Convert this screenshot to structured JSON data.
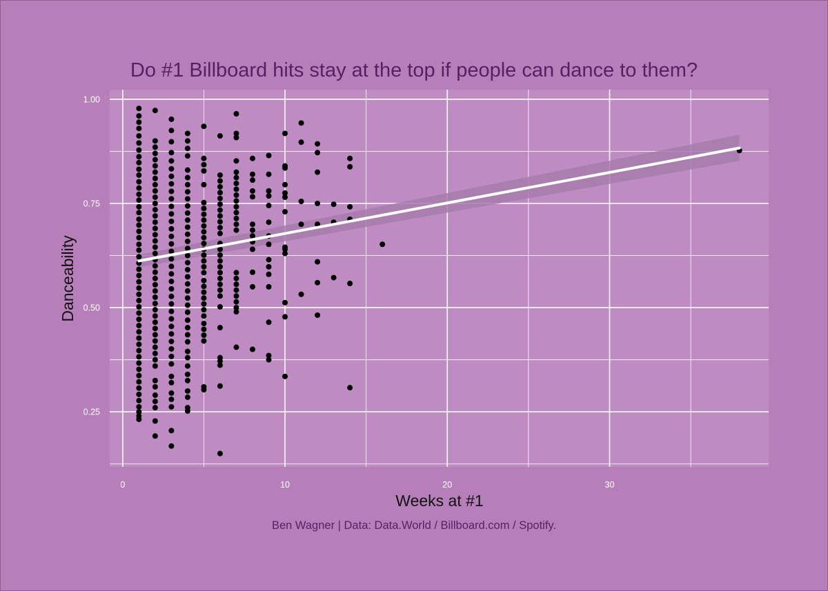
{
  "chart_data": {
    "type": "scatter",
    "title": "Do #1 Billboard hits stay at the top if people can dance to them?",
    "caption": "Ben Wagner | Data: Data.World / Billboard.com / Spotify.",
    "xlabel": "Weeks at #1",
    "ylabel": "Danceability",
    "xlim": [
      -0.8,
      39.8
    ],
    "ylim": [
      0.118,
      1.023
    ],
    "x_ticks": [
      0,
      10,
      20,
      30
    ],
    "x_tick_labels": [
      "0",
      "10",
      "20",
      "30"
    ],
    "x_minor_ticks": [
      5,
      15,
      25,
      35
    ],
    "y_ticks": [
      0.25,
      0.5,
      0.75,
      1.0
    ],
    "y_tick_labels": [
      "0.25",
      "0.50",
      "0.75",
      "1.00"
    ],
    "y_minor_ticks": [
      0.125,
      0.375,
      0.625,
      0.875
    ],
    "grid": true,
    "legend": "none",
    "colors": {
      "background": "#b77fba",
      "panel": "#be8cc3",
      "grid": "#ffffff",
      "points": "#000000",
      "trend_line": "#ffffff",
      "confidence_band": "#a77cad",
      "title": "#5a1f63"
    },
    "trend_line": {
      "x": [
        1,
        38
      ],
      "y": [
        0.612,
        0.883
      ],
      "ci_lower": [
        0.597,
        0.852
      ],
      "ci_upper": [
        0.627,
        0.915
      ]
    },
    "points": [
      [
        1,
        0.978
      ],
      [
        1,
        0.96
      ],
      [
        1,
        0.945
      ],
      [
        1,
        0.93
      ],
      [
        1,
        0.912
      ],
      [
        1,
        0.895
      ],
      [
        1,
        0.878
      ],
      [
        1,
        0.862
      ],
      [
        1,
        0.848
      ],
      [
        1,
        0.832
      ],
      [
        1,
        0.818
      ],
      [
        1,
        0.802
      ],
      [
        1,
        0.787
      ],
      [
        1,
        0.772
      ],
      [
        1,
        0.758
      ],
      [
        1,
        0.742
      ],
      [
        1,
        0.728
      ],
      [
        1,
        0.712
      ],
      [
        1,
        0.698
      ],
      [
        1,
        0.683
      ],
      [
        1,
        0.668
      ],
      [
        1,
        0.652
      ],
      [
        1,
        0.638
      ],
      [
        1,
        0.622
      ],
      [
        1,
        0.607
      ],
      [
        1,
        0.592
      ],
      [
        1,
        0.577
      ],
      [
        1,
        0.562
      ],
      [
        1,
        0.547
      ],
      [
        1,
        0.532
      ],
      [
        1,
        0.517
      ],
      [
        1,
        0.502
      ],
      [
        1,
        0.487
      ],
      [
        1,
        0.472
      ],
      [
        1,
        0.457
      ],
      [
        1,
        0.442
      ],
      [
        1,
        0.427
      ],
      [
        1,
        0.412
      ],
      [
        1,
        0.397
      ],
      [
        1,
        0.382
      ],
      [
        1,
        0.367
      ],
      [
        1,
        0.352
      ],
      [
        1,
        0.337
      ],
      [
        1,
        0.322
      ],
      [
        1,
        0.307
      ],
      [
        1,
        0.292
      ],
      [
        1,
        0.277
      ],
      [
        1,
        0.262
      ],
      [
        1,
        0.25
      ],
      [
        1,
        0.24
      ],
      [
        1,
        0.232
      ],
      [
        2,
        0.973
      ],
      [
        2,
        0.9
      ],
      [
        2,
        0.885
      ],
      [
        2,
        0.87
      ],
      [
        2,
        0.855
      ],
      [
        2,
        0.84
      ],
      [
        2,
        0.825
      ],
      [
        2,
        0.81
      ],
      [
        2,
        0.795
      ],
      [
        2,
        0.78
      ],
      [
        2,
        0.765
      ],
      [
        2,
        0.75
      ],
      [
        2,
        0.735
      ],
      [
        2,
        0.72
      ],
      [
        2,
        0.705
      ],
      [
        2,
        0.69
      ],
      [
        2,
        0.675
      ],
      [
        2,
        0.66
      ],
      [
        2,
        0.645
      ],
      [
        2,
        0.63
      ],
      [
        2,
        0.615
      ],
      [
        2,
        0.6
      ],
      [
        2,
        0.585
      ],
      [
        2,
        0.57
      ],
      [
        2,
        0.555
      ],
      [
        2,
        0.54
      ],
      [
        2,
        0.525
      ],
      [
        2,
        0.51
      ],
      [
        2,
        0.495
      ],
      [
        2,
        0.48
      ],
      [
        2,
        0.465
      ],
      [
        2,
        0.45
      ],
      [
        2,
        0.435
      ],
      [
        2,
        0.42
      ],
      [
        2,
        0.405
      ],
      [
        2,
        0.39
      ],
      [
        2,
        0.375
      ],
      [
        2,
        0.36
      ],
      [
        2,
        0.325
      ],
      [
        2,
        0.31
      ],
      [
        2,
        0.29
      ],
      [
        2,
        0.275
      ],
      [
        2,
        0.26
      ],
      [
        2,
        0.228
      ],
      [
        2,
        0.192
      ],
      [
        3,
        0.952
      ],
      [
        3,
        0.925
      ],
      [
        3,
        0.898
      ],
      [
        3,
        0.872
      ],
      [
        3,
        0.852
      ],
      [
        3,
        0.833
      ],
      [
        3,
        0.815
      ],
      [
        3,
        0.797
      ],
      [
        3,
        0.779
      ],
      [
        3,
        0.761
      ],
      [
        3,
        0.743
      ],
      [
        3,
        0.725
      ],
      [
        3,
        0.707
      ],
      [
        3,
        0.689
      ],
      [
        3,
        0.671
      ],
      [
        3,
        0.653
      ],
      [
        3,
        0.635
      ],
      [
        3,
        0.617
      ],
      [
        3,
        0.599
      ],
      [
        3,
        0.581
      ],
      [
        3,
        0.563
      ],
      [
        3,
        0.545
      ],
      [
        3,
        0.527
      ],
      [
        3,
        0.509
      ],
      [
        3,
        0.491
      ],
      [
        3,
        0.473
      ],
      [
        3,
        0.455
      ],
      [
        3,
        0.437
      ],
      [
        3,
        0.419
      ],
      [
        3,
        0.401
      ],
      [
        3,
        0.383
      ],
      [
        3,
        0.365
      ],
      [
        3,
        0.335
      ],
      [
        3,
        0.32
      ],
      [
        3,
        0.295
      ],
      [
        3,
        0.28
      ],
      [
        3,
        0.262
      ],
      [
        3,
        0.205
      ],
      [
        3,
        0.168
      ],
      [
        4,
        0.918
      ],
      [
        4,
        0.9
      ],
      [
        4,
        0.882
      ],
      [
        4,
        0.864
      ],
      [
        4,
        0.83
      ],
      [
        4,
        0.812
      ],
      [
        4,
        0.795
      ],
      [
        4,
        0.778
      ],
      [
        4,
        0.761
      ],
      [
        4,
        0.744
      ],
      [
        4,
        0.727
      ],
      [
        4,
        0.71
      ],
      [
        4,
        0.693
      ],
      [
        4,
        0.676
      ],
      [
        4,
        0.659
      ],
      [
        4,
        0.642
      ],
      [
        4,
        0.625
      ],
      [
        4,
        0.608
      ],
      [
        4,
        0.591
      ],
      [
        4,
        0.574
      ],
      [
        4,
        0.557
      ],
      [
        4,
        0.54
      ],
      [
        4,
        0.523
      ],
      [
        4,
        0.506
      ],
      [
        4,
        0.489
      ],
      [
        4,
        0.47
      ],
      [
        4,
        0.452
      ],
      [
        4,
        0.435
      ],
      [
        4,
        0.418
      ],
      [
        4,
        0.395
      ],
      [
        4,
        0.38
      ],
      [
        4,
        0.36
      ],
      [
        4,
        0.34
      ],
      [
        4,
        0.325
      ],
      [
        4,
        0.3
      ],
      [
        4,
        0.285
      ],
      [
        4,
        0.26
      ],
      [
        4,
        0.252
      ],
      [
        5,
        0.935
      ],
      [
        5,
        0.858
      ],
      [
        5,
        0.843
      ],
      [
        5,
        0.828
      ],
      [
        5,
        0.795
      ],
      [
        5,
        0.752
      ],
      [
        5,
        0.738
      ],
      [
        5,
        0.724
      ],
      [
        5,
        0.71
      ],
      [
        5,
        0.696
      ],
      [
        5,
        0.682
      ],
      [
        5,
        0.668
      ],
      [
        5,
        0.654
      ],
      [
        5,
        0.64
      ],
      [
        5,
        0.626
      ],
      [
        5,
        0.612
      ],
      [
        5,
        0.598
      ],
      [
        5,
        0.584
      ],
      [
        5,
        0.565
      ],
      [
        5,
        0.551
      ],
      [
        5,
        0.537
      ],
      [
        5,
        0.523
      ],
      [
        5,
        0.509
      ],
      [
        5,
        0.495
      ],
      [
        5,
        0.48
      ],
      [
        5,
        0.462
      ],
      [
        5,
        0.448
      ],
      [
        5,
        0.434
      ],
      [
        5,
        0.42
      ],
      [
        5,
        0.31
      ],
      [
        5,
        0.303
      ],
      [
        6,
        0.912
      ],
      [
        6,
        0.818
      ],
      [
        6,
        0.804
      ],
      [
        6,
        0.79
      ],
      [
        6,
        0.776
      ],
      [
        6,
        0.762
      ],
      [
        6,
        0.748
      ],
      [
        6,
        0.734
      ],
      [
        6,
        0.72
      ],
      [
        6,
        0.706
      ],
      [
        6,
        0.692
      ],
      [
        6,
        0.678
      ],
      [
        6,
        0.654
      ],
      [
        6,
        0.64
      ],
      [
        6,
        0.626
      ],
      [
        6,
        0.612
      ],
      [
        6,
        0.598
      ],
      [
        6,
        0.584
      ],
      [
        6,
        0.57
      ],
      [
        6,
        0.556
      ],
      [
        6,
        0.542
      ],
      [
        6,
        0.528
      ],
      [
        6,
        0.502
      ],
      [
        6,
        0.452
      ],
      [
        6,
        0.38
      ],
      [
        6,
        0.372
      ],
      [
        6,
        0.362
      ],
      [
        6,
        0.312
      ],
      [
        6,
        0.15
      ],
      [
        7,
        0.965
      ],
      [
        7,
        0.918
      ],
      [
        7,
        0.908
      ],
      [
        7,
        0.852
      ],
      [
        7,
        0.825
      ],
      [
        7,
        0.812
      ],
      [
        7,
        0.798
      ],
      [
        7,
        0.784
      ],
      [
        7,
        0.77
      ],
      [
        7,
        0.756
      ],
      [
        7,
        0.742
      ],
      [
        7,
        0.728
      ],
      [
        7,
        0.714
      ],
      [
        7,
        0.7
      ],
      [
        7,
        0.686
      ],
      [
        7,
        0.584
      ],
      [
        7,
        0.57
      ],
      [
        7,
        0.556
      ],
      [
        7,
        0.542
      ],
      [
        7,
        0.528
      ],
      [
        7,
        0.514
      ],
      [
        7,
        0.5
      ],
      [
        7,
        0.49
      ],
      [
        7,
        0.405
      ],
      [
        8,
        0.858
      ],
      [
        8,
        0.82
      ],
      [
        8,
        0.806
      ],
      [
        8,
        0.78
      ],
      [
        8,
        0.766
      ],
      [
        8,
        0.7
      ],
      [
        8,
        0.686
      ],
      [
        8,
        0.672
      ],
      [
        8,
        0.658
      ],
      [
        8,
        0.64
      ],
      [
        8,
        0.585
      ],
      [
        8,
        0.55
      ],
      [
        8,
        0.4
      ],
      [
        9,
        0.865
      ],
      [
        9,
        0.82
      ],
      [
        9,
        0.78
      ],
      [
        9,
        0.768
      ],
      [
        9,
        0.745
      ],
      [
        9,
        0.705
      ],
      [
        9,
        0.672
      ],
      [
        9,
        0.652
      ],
      [
        9,
        0.615
      ],
      [
        9,
        0.598
      ],
      [
        9,
        0.58
      ],
      [
        9,
        0.55
      ],
      [
        9,
        0.465
      ],
      [
        9,
        0.385
      ],
      [
        9,
        0.375
      ],
      [
        10,
        0.918
      ],
      [
        10,
        0.84
      ],
      [
        10,
        0.835
      ],
      [
        10,
        0.795
      ],
      [
        10,
        0.775
      ],
      [
        10,
        0.765
      ],
      [
        10,
        0.73
      ],
      [
        10,
        0.645
      ],
      [
        10,
        0.64
      ],
      [
        10,
        0.63
      ],
      [
        10,
        0.512
      ],
      [
        10,
        0.478
      ],
      [
        10,
        0.335
      ],
      [
        11,
        0.943
      ],
      [
        11,
        0.897
      ],
      [
        11,
        0.755
      ],
      [
        11,
        0.7
      ],
      [
        11,
        0.532
      ],
      [
        12,
        0.893
      ],
      [
        12,
        0.872
      ],
      [
        12,
        0.825
      ],
      [
        12,
        0.75
      ],
      [
        12,
        0.7
      ],
      [
        12,
        0.61
      ],
      [
        12,
        0.56
      ],
      [
        12,
        0.482
      ],
      [
        13,
        0.748
      ],
      [
        13,
        0.705
      ],
      [
        13,
        0.572
      ],
      [
        14,
        0.858
      ],
      [
        14,
        0.838
      ],
      [
        14,
        0.742
      ],
      [
        14,
        0.712
      ],
      [
        14,
        0.558
      ],
      [
        14,
        0.308
      ],
      [
        16,
        0.652
      ],
      [
        38,
        0.877
      ]
    ]
  }
}
